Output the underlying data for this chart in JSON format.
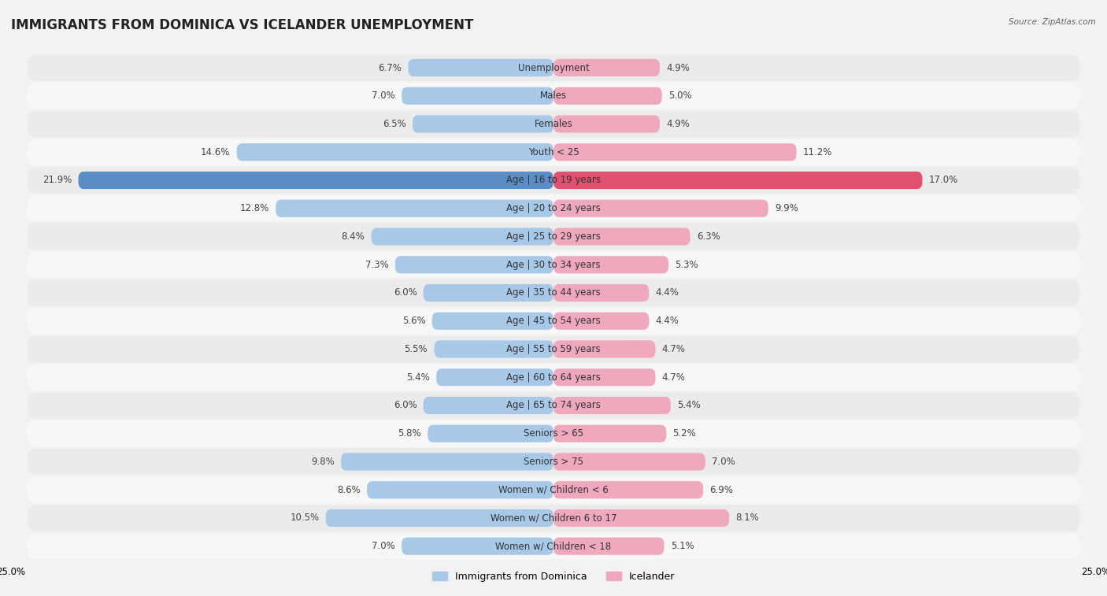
{
  "title": "IMMIGRANTS FROM DOMINICA VS ICELANDER UNEMPLOYMENT",
  "source": "Source: ZipAtlas.com",
  "categories": [
    "Unemployment",
    "Males",
    "Females",
    "Youth < 25",
    "Age | 16 to 19 years",
    "Age | 20 to 24 years",
    "Age | 25 to 29 years",
    "Age | 30 to 34 years",
    "Age | 35 to 44 years",
    "Age | 45 to 54 years",
    "Age | 55 to 59 years",
    "Age | 60 to 64 years",
    "Age | 65 to 74 years",
    "Seniors > 65",
    "Seniors > 75",
    "Women w/ Children < 6",
    "Women w/ Children 6 to 17",
    "Women w/ Children < 18"
  ],
  "dominica_values": [
    6.7,
    7.0,
    6.5,
    14.6,
    21.9,
    12.8,
    8.4,
    7.3,
    6.0,
    5.6,
    5.5,
    5.4,
    6.0,
    5.8,
    9.8,
    8.6,
    10.5,
    7.0
  ],
  "icelander_values": [
    4.9,
    5.0,
    4.9,
    11.2,
    17.0,
    9.9,
    6.3,
    5.3,
    4.4,
    4.4,
    4.7,
    4.7,
    5.4,
    5.2,
    7.0,
    6.9,
    8.1,
    5.1
  ],
  "dominica_color": "#a8c8e8",
  "icelander_color": "#f0a8bc",
  "highlight_dominica_color": "#5b8ec7",
  "highlight_icelander_color": "#e05070",
  "axis_limit": 25.0,
  "bar_height": 0.62,
  "background_color": "#f2f2f2",
  "row_even_color": "#ebebeb",
  "row_odd_color": "#f7f7f7",
  "title_fontsize": 12,
  "label_fontsize": 8.5,
  "value_fontsize": 8.5,
  "legend_fontsize": 9
}
